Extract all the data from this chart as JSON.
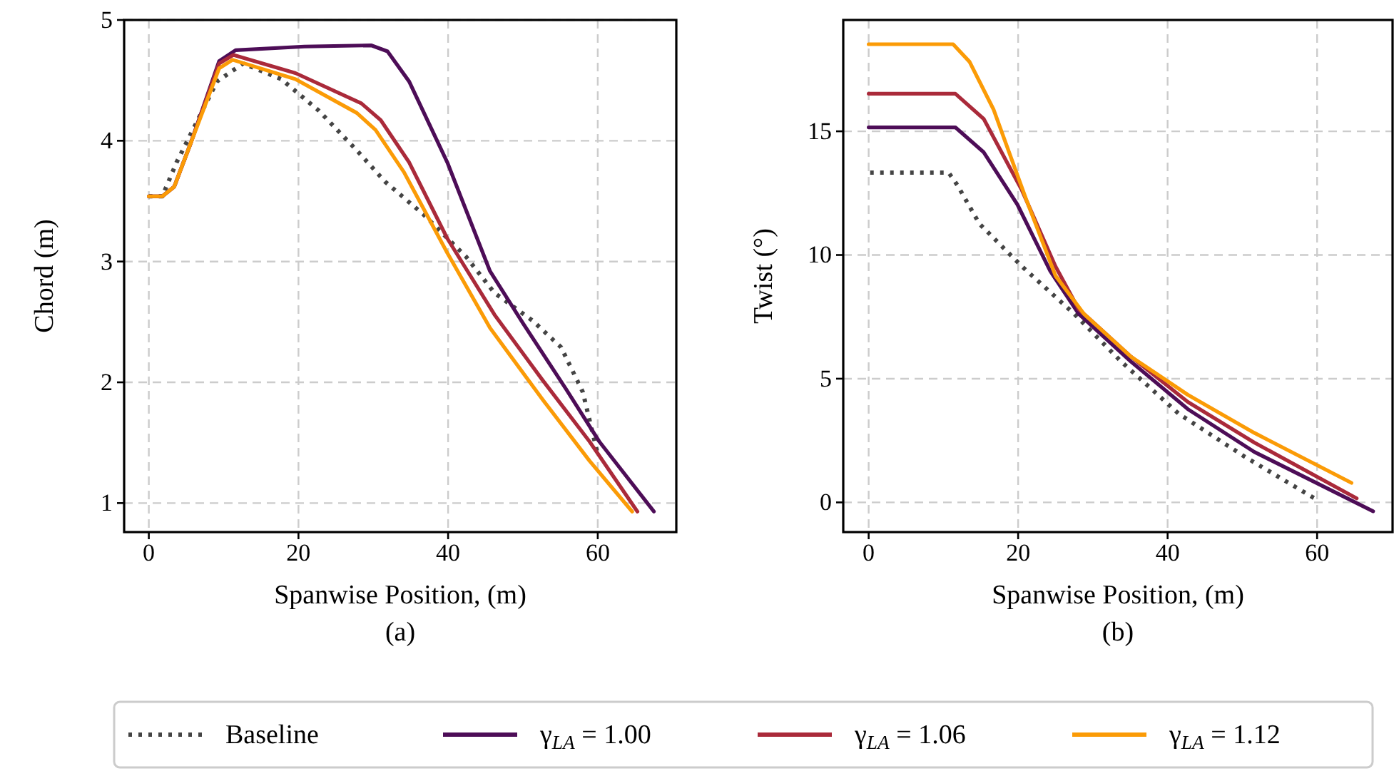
{
  "chart_data": [
    {
      "type": "line",
      "xlabel": "Spanwise Position, (m)",
      "ylabel": "Chord (m)",
      "annotations": [
        "(a)"
      ],
      "xlim": [
        -3.3,
        70.5
      ],
      "ylim": [
        0.76,
        5
      ],
      "xticks": [
        0,
        20,
        40,
        60
      ],
      "yticks": [
        1,
        2,
        3,
        4,
        5
      ],
      "grid": true,
      "legend": "bottom",
      "series": [
        {
          "name": "Baseline",
          "color": "#444444",
          "line_style": "dotted",
          "x": [
            0,
            1.8,
            3.7,
            6.2,
            9.1,
            12.6,
            17.7,
            22.7,
            27.8,
            31.6,
            36.7,
            42.4,
            46.2,
            51.3,
            55.1,
            58,
            59.9
          ],
          "values": [
            3.54,
            3.54,
            3.82,
            4.13,
            4.49,
            4.64,
            4.51,
            4.25,
            3.92,
            3.66,
            3.39,
            3.04,
            2.74,
            2.51,
            2.29,
            1.92,
            1.43
          ]
        },
        {
          "name": "γ$_{LA}$ = 1.00",
          "color": "#4d0d57",
          "line_style": "solid",
          "x": [
            0,
            1.8,
            3.4,
            5.6,
            9.4,
            11.6,
            20.8,
            29.7,
            31.9,
            34.8,
            39.9,
            45.6,
            50,
            55.8,
            60.2,
            67.5
          ],
          "values": [
            3.54,
            3.54,
            3.62,
            3.98,
            4.66,
            4.75,
            4.78,
            4.79,
            4.74,
            4.49,
            3.82,
            2.92,
            2.49,
            1.94,
            1.51,
            0.93
          ]
        },
        {
          "name": "γ$_{LA}$ = 1.06",
          "color": "#aa2a3a",
          "line_style": "solid",
          "x": [
            0,
            1.8,
            3.4,
            5.6,
            9.4,
            11.3,
            19.6,
            28.4,
            31,
            34.8,
            39.9,
            46.2,
            52.6,
            58.9,
            65.3
          ],
          "values": [
            3.54,
            3.54,
            3.62,
            3.98,
            4.64,
            4.71,
            4.56,
            4.31,
            4.17,
            3.82,
            3.19,
            2.56,
            2.02,
            1.51,
            0.93
          ]
        },
        {
          "name": "γ$_{LA}$ = 1.12",
          "color": "#fb9b06",
          "line_style": "solid",
          "x": [
            0,
            1.8,
            3.4,
            5.6,
            9.4,
            11.2,
            19.6,
            27.8,
            30.3,
            34.1,
            39.9,
            45.6,
            52.6,
            58.9,
            64.6
          ],
          "values": [
            3.54,
            3.54,
            3.62,
            3.98,
            4.6,
            4.67,
            4.51,
            4.23,
            4.09,
            3.74,
            3.07,
            2.45,
            1.86,
            1.35,
            0.93
          ]
        }
      ]
    },
    {
      "type": "line",
      "xlabel": "Spanwise Position, (m)",
      "ylabel": "Twist (°)",
      "annotations": [
        "(b)"
      ],
      "xlim": [
        -3.4,
        70.1
      ],
      "ylim": [
        -1.2,
        19.5
      ],
      "xticks": [
        0,
        20,
        40,
        60
      ],
      "yticks": [
        0,
        5,
        10,
        15
      ],
      "grid": true,
      "legend": "bottom",
      "series": [
        {
          "name": "Baseline",
          "color": "#444444",
          "line_style": "dotted",
          "x": [
            0.2,
            10.7,
            11.9,
            14.8,
            20.5,
            27.5,
            33.8,
            41.5,
            50.3,
            59.9
          ],
          "values": [
            13.33,
            13.33,
            12.81,
            11.27,
            9.54,
            7.62,
            5.69,
            3.58,
            1.85,
            0.12
          ]
        },
        {
          "name": "γ$_{LA}$ = 1.00",
          "color": "#4d0d57",
          "line_style": "solid",
          "x": [
            0,
            11.6,
            15.4,
            19.9,
            24.3,
            28.1,
            35.1,
            42.7,
            51.6,
            67.5
          ],
          "values": [
            15.16,
            15.16,
            14.15,
            12.04,
            9.35,
            7.62,
            5.69,
            3.77,
            2.04,
            -0.36
          ]
        },
        {
          "name": "γ$_{LA}$ = 1.06",
          "color": "#aa2a3a",
          "line_style": "solid",
          "x": [
            0,
            11.6,
            15.4,
            20.5,
            25,
            28.1,
            35.1,
            42.7,
            51.6,
            65.3
          ],
          "values": [
            16.52,
            16.52,
            15.5,
            12.62,
            9.54,
            7.81,
            5.89,
            4.06,
            2.42,
            0.16
          ]
        },
        {
          "name": "γ$_{LA}$ = 1.12",
          "color": "#fb9b06",
          "line_style": "solid",
          "x": [
            0,
            11.3,
            13.5,
            16.7,
            21.1,
            25,
            28.8,
            35.1,
            42.7,
            51.6,
            64.6
          ],
          "values": [
            18.52,
            18.52,
            17.81,
            15.89,
            12.23,
            9.16,
            7.62,
            5.89,
            4.35,
            2.81,
            0.79
          ]
        }
      ]
    }
  ]
}
